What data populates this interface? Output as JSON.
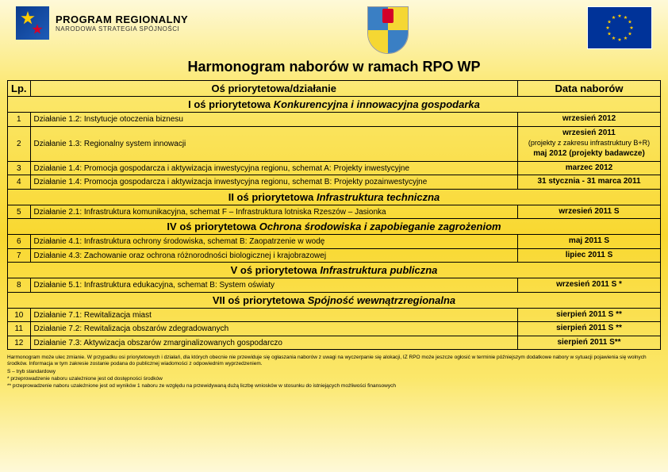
{
  "header": {
    "program_line1": "PROGRAM REGIONALNY",
    "program_line2": "NARODOWA STRATEGIA SPÓJNOŚCI"
  },
  "title": "Harmonogram naborów w ramach RPO WP",
  "columns": {
    "lp": "Lp.",
    "action": "Oś priorytetowa/działanie",
    "date": "Data naborów"
  },
  "sections": [
    {
      "heading_plain": "I oś priorytetowa ",
      "heading_italic": "Konkurencyjna i innowacyjna gospodarka",
      "rows": [
        {
          "lp": "1",
          "action": "Działanie 1.2: Instytucje otoczenia biznesu",
          "date_lines": [
            "wrzesień 2012"
          ]
        },
        {
          "lp": "2",
          "action": "Działanie 1.3: Regionalny system innowacji",
          "date_lines": [
            "wrzesień 2011",
            "(projekty z zakresu infrastruktury B+R)",
            "",
            "maj 2012 (projekty badawcze)"
          ]
        },
        {
          "lp": "3",
          "action": "Działanie 1.4: Promocja gospodarcza i aktywizacja inwestycyjna regionu, schemat A: Projekty inwestycyjne",
          "date_lines": [
            "marzec 2012"
          ]
        },
        {
          "lp": "4",
          "action": "Działanie 1.4: Promocja gospodarcza i aktywizacja inwestycyjna regionu, schemat B: Projekty pozainwestycyjne",
          "date_lines": [
            "31 stycznia - 31 marca 2011"
          ]
        }
      ]
    },
    {
      "heading_plain": "II oś priorytetowa ",
      "heading_italic": "Infrastruktura techniczna",
      "rows": [
        {
          "lp": "5",
          "action": "Działanie 2.1: Infrastruktura komunikacyjna, schemat F – Infrastruktura lotniska Rzeszów – Jasionka",
          "date_lines": [
            "wrzesień 2011 S"
          ]
        }
      ]
    },
    {
      "heading_plain": "IV oś priorytetowa ",
      "heading_italic": "Ochrona środowiska i zapobieganie zagrożeniom",
      "rows": [
        {
          "lp": "6",
          "action": "Działanie 4.1: Infrastruktura ochrony środowiska, schemat B: Zaopatrzenie w wodę",
          "date_lines": [
            "maj  2011 S"
          ]
        },
        {
          "lp": "7",
          "action": "Działanie 4.3: Zachowanie oraz ochrona różnorodności biologicznej i krajobrazowej",
          "date_lines": [
            "lipiec 2011 S"
          ]
        }
      ]
    },
    {
      "heading_plain": "V oś priorytetowa ",
      "heading_italic": "Infrastruktura publiczna",
      "rows": [
        {
          "lp": "8",
          "action": "Działanie 5.1: Infrastruktura edukacyjna, schemat B: System oświaty",
          "date_lines": [
            "wrzesień 2011 S *"
          ]
        }
      ]
    },
    {
      "heading_plain": "VII oś priorytetowa ",
      "heading_italic": "Spójność wewnątrzregionalna",
      "rows": [
        {
          "lp": "10",
          "action": "Działanie 7.1: Rewitalizacja miast",
          "date_lines": [
            "sierpień 2011 S **"
          ]
        },
        {
          "lp": "11",
          "action": "Działanie 7.2: Rewitalizacja obszarów zdegradowanych",
          "date_lines": [
            "sierpień 2011 S **"
          ]
        },
        {
          "lp": "12",
          "action": "Działanie 7.3: Aktywizacja obszarów zmarginalizowanych gospodarczo",
          "date_lines": [
            "sierpień 2011 S**"
          ]
        }
      ]
    }
  ],
  "footnotes": [
    "Harmonogram może ulec zmianie. W przypadku osi priorytetowych i działań, dla których obecnie nie przewiduje się ogłaszania naborów z uwagi na wyczerpanie się alokacji, IZ RPO może jeszcze ogłosić w terminie późniejszym dodatkowe nabory w sytuacji pojawienia się wolnych środków. Informacja w tym zakresie zostanie podana do publicznej wiadomości z odpowiednim wyprzedzeniem.",
    "S – tryb standardowy",
    "* przeprowadzenie naboru uzależnione jest od dostępności środków",
    "** przeprowadzenie naboru uzależnione jest od wyników 1 naboru ze względu na przewidywaną dużą liczbę wniosków w stosunku do istniejących możliwości finansowych"
  ],
  "colors": {
    "border": "#000000",
    "bg_gradient_top": "#fef9d8",
    "bg_gradient_mid": "#f9d830"
  }
}
